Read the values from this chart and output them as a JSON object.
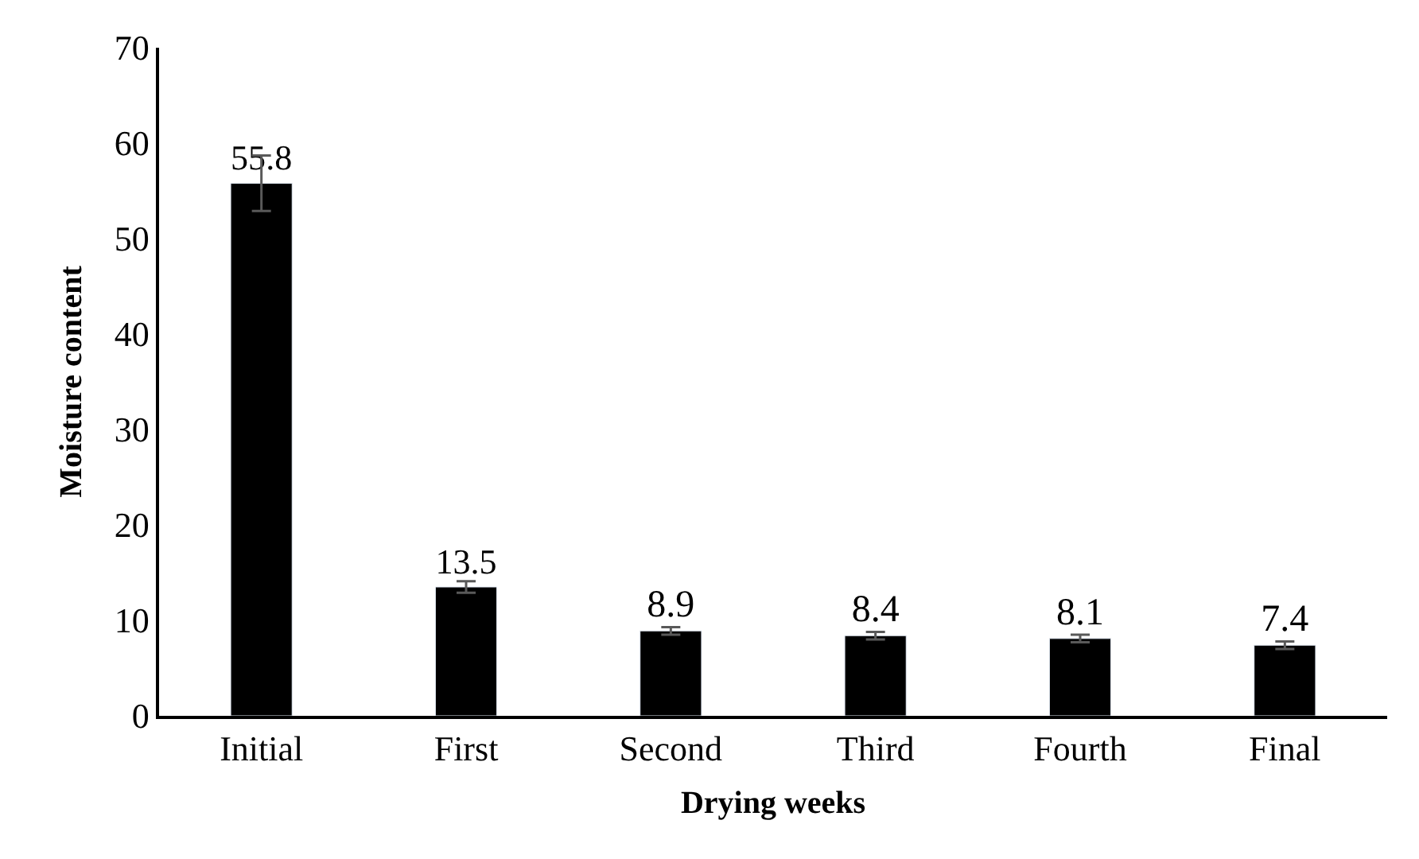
{
  "chart_data": {
    "type": "bar",
    "xlabel": "Drying weeks",
    "ylabel": "Moisture content",
    "categories": [
      "Initial",
      "First",
      "Second",
      "Third",
      "Fourth",
      "Final"
    ],
    "values": [
      55.8,
      13.5,
      8.9,
      8.4,
      8.1,
      7.4
    ],
    "errors": [
      2.9,
      0.6,
      0.4,
      0.4,
      0.4,
      0.4
    ],
    "color": "#000000",
    "data_labels": true,
    "ylim": [
      0,
      70
    ],
    "yticks": [
      0,
      10,
      20,
      30,
      40,
      50,
      60,
      70
    ]
  }
}
